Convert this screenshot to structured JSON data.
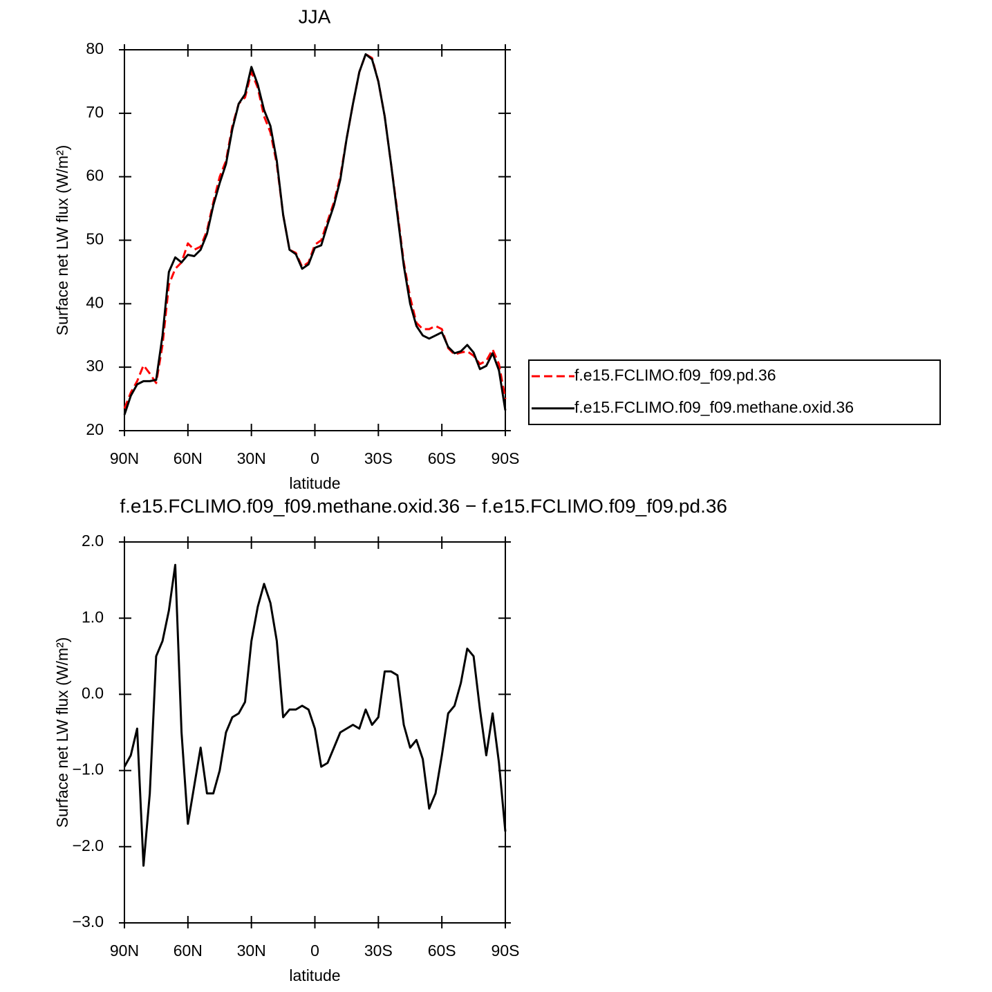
{
  "chart_data": [
    {
      "type": "line",
      "title": "JJA",
      "xlabel": "latitude",
      "ylabel": "Surface net LW flux (W/m²)",
      "x": [
        90,
        87,
        84,
        81,
        78,
        75,
        72,
        69,
        66,
        63,
        60,
        57,
        54,
        51,
        48,
        45,
        42,
        39,
        36,
        33,
        30,
        27,
        24,
        21,
        18,
        15,
        12,
        9,
        6,
        3,
        0,
        -3,
        -6,
        -9,
        -12,
        -15,
        -18,
        -21,
        -24,
        -27,
        -30,
        -33,
        -36,
        -39,
        -42,
        -45,
        -48,
        -51,
        -54,
        -57,
        -60,
        -63,
        -66,
        -69,
        -72,
        -75,
        -78,
        -81,
        -84,
        -87,
        -90
      ],
      "series": [
        {
          "name": "f.e15.FCLIMO.f09_f09.pd.36",
          "color": "#ff0000",
          "dash": "dashed",
          "values": [
            23.5,
            26,
            27.8,
            30.3,
            29,
            27.5,
            33.5,
            43,
            45.5,
            46.5,
            49.5,
            48.5,
            49,
            51.5,
            56,
            60,
            62.5,
            68,
            71.5,
            72.5,
            76.5,
            74,
            69.5,
            67,
            62,
            54,
            48.5,
            48,
            45.8,
            46.5,
            49.3,
            50,
            53,
            56,
            60,
            66,
            71.5,
            76.5,
            79.3,
            78.7,
            75,
            69.5,
            62,
            54.5,
            46.5,
            41,
            37,
            36,
            36,
            36.5,
            36,
            33,
            32,
            32.3,
            32.5,
            31.8,
            30.5,
            31,
            32.8,
            30.5,
            25
          ]
        },
        {
          "name": "f.e15.FCLIMO.f09_f09.methane.oxid.36",
          "color": "#000000",
          "dash": "solid",
          "values": [
            22.5,
            25.5,
            27.3,
            27.8,
            27.8,
            28,
            35,
            45,
            47.3,
            46.5,
            47.7,
            47.5,
            48.5,
            51,
            55.5,
            59,
            62,
            67.5,
            71.5,
            73,
            77.3,
            74.5,
            70.5,
            68,
            62.5,
            54,
            48.5,
            47.8,
            45.5,
            46.2,
            48.8,
            49.2,
            52.5,
            55.5,
            59.5,
            66,
            71.5,
            76.5,
            79.3,
            78.5,
            75,
            69.5,
            62,
            54,
            46,
            40,
            36.5,
            35,
            34.5,
            35,
            35.5,
            33.2,
            32.2,
            32.5,
            33.5,
            32.3,
            29.7,
            30.2,
            32.2,
            29.5,
            23.2
          ]
        }
      ],
      "xlim": [
        90,
        -90
      ],
      "xticks": [
        {
          "value": 90,
          "label": "90N"
        },
        {
          "value": 60,
          "label": "60N"
        },
        {
          "value": 30,
          "label": "30N"
        },
        0,
        {
          "value": -30,
          "label": "30S"
        },
        {
          "value": -60,
          "label": "60S"
        },
        {
          "value": -90,
          "label": "90S"
        }
      ],
      "ylim": [
        20,
        80
      ],
      "yticks": [
        20,
        30,
        40,
        50,
        60,
        70,
        80
      ],
      "legend": "right"
    },
    {
      "type": "line",
      "title": "f.e15.FCLIMO.f09_f09.methane.oxid.36 − f.e15.FCLIMO.f09_f09.pd.36",
      "xlabel": "latitude",
      "ylabel": "Surface net LW flux (W/m²)",
      "x": [
        90,
        87,
        84,
        81,
        78,
        75,
        72,
        69,
        66,
        63,
        60,
        57,
        54,
        51,
        48,
        45,
        42,
        39,
        36,
        33,
        30,
        27,
        24,
        21,
        18,
        15,
        12,
        9,
        6,
        3,
        0,
        -3,
        -6,
        -9,
        -12,
        -15,
        -18,
        -21,
        -24,
        -27,
        -30,
        -33,
        -36,
        -39,
        -42,
        -45,
        -48,
        -51,
        -54,
        -57,
        -60,
        -63,
        -66,
        -69,
        -72,
        -75,
        -78,
        -81,
        -84,
        -87,
        -90
      ],
      "series": [
        {
          "color": "#000000",
          "dash": "solid",
          "values": [
            -0.95,
            -0.8,
            -0.45,
            -2.25,
            -1.3,
            0.5,
            0.7,
            1.1,
            1.7,
            -0.5,
            -1.7,
            -1.2,
            -0.7,
            -1.3,
            -1.3,
            -1.0,
            -0.5,
            -0.3,
            -0.25,
            -0.1,
            0.7,
            1.15,
            1.45,
            1.2,
            0.7,
            -0.3,
            -0.2,
            -0.2,
            -0.15,
            -0.2,
            -0.45,
            -0.95,
            -0.9,
            -0.7,
            -0.5,
            -0.45,
            -0.4,
            -0.45,
            -0.2,
            -0.4,
            -0.3,
            0.3,
            0.3,
            0.25,
            -0.4,
            -0.7,
            -0.6,
            -0.85,
            -1.5,
            -1.3,
            -0.8,
            -0.25,
            -0.15,
            0.15,
            0.6,
            0.5,
            -0.2,
            -0.8,
            -0.25,
            -0.9,
            -1.8
          ]
        }
      ],
      "xlim": [
        90,
        -90
      ],
      "xticks": [
        {
          "value": 90,
          "label": "90N"
        },
        {
          "value": 60,
          "label": "60N"
        },
        {
          "value": 30,
          "label": "30N"
        },
        0,
        {
          "value": -30,
          "label": "30S"
        },
        {
          "value": -60,
          "label": "60S"
        },
        {
          "value": -90,
          "label": "90S"
        }
      ],
      "ylim": [
        -3,
        2
      ],
      "yticks": [
        {
          "value": -3,
          "label": "−3.0"
        },
        {
          "value": -2,
          "label": "−2.0"
        },
        {
          "value": -1,
          "label": "−1.0"
        },
        {
          "value": 0,
          "label": "0.0"
        },
        {
          "value": 1,
          "label": "1.0"
        },
        {
          "value": 2,
          "label": "2.0"
        }
      ]
    }
  ]
}
